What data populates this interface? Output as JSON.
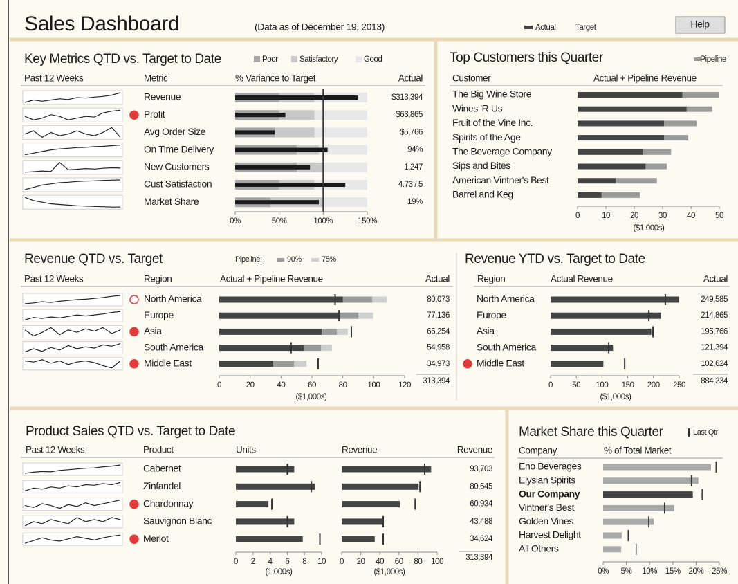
{
  "colors": {
    "title": "#b86e2e",
    "actual": "#444444",
    "key_actual": "#1a1a1a",
    "poor": "#a6a6a6",
    "satisfactory": "#c8c8c8",
    "good": "#e8e8e8",
    "pipeline_90": "#9a9a9a",
    "pipeline_75": "#cfcfcf",
    "pipeline": "#9a9a9a",
    "share": "#a9a9a9",
    "highlight": "#444444",
    "alert": "#e03a3a",
    "target": "#333333"
  },
  "header": {
    "title": "Sales Dashboard",
    "subtitle": "(Data as of December 19, 2013)",
    "legend": [
      "Actual",
      "Target"
    ],
    "help": "Help"
  },
  "key_metrics": {
    "title": "Key Metrics QTD vs. Target to Date",
    "legend": [
      "Poor",
      "Satisfactory",
      "Good"
    ],
    "columns": [
      "Past 12 Weeks",
      "Metric",
      "% Variance to Target",
      "Actual"
    ],
    "xlim": [
      0,
      150
    ],
    "xticks": [
      {
        "value": 0,
        "label": "0%"
      },
      {
        "value": 50,
        "label": "50%"
      },
      {
        "value": 100,
        "label": "100%"
      },
      {
        "value": 150,
        "label": "150%"
      }
    ],
    "target": 100,
    "rows": [
      {
        "metric": "Revenue",
        "alert": false,
        "spark": [
          3,
          4,
          3.5,
          4,
          4.5,
          4.2,
          5,
          4.8,
          5.2,
          5.5,
          6,
          7
        ],
        "poor": 50,
        "satisfactory": 90,
        "value": 139,
        "actual": "$313,394"
      },
      {
        "metric": "Profit",
        "alert": true,
        "spark": [
          5,
          4,
          4.5,
          5.5,
          5,
          4,
          4.5,
          5,
          4.8,
          6,
          6.5,
          6.8
        ],
        "poor": 50,
        "satisfactory": 90,
        "value": 57,
        "actual": "$63,865"
      },
      {
        "metric": "Avg Order Size",
        "alert": false,
        "spark": [
          5,
          6,
          4,
          5.5,
          4.5,
          5,
          6,
          5,
          4.5,
          5.5,
          7,
          4
        ],
        "poor": 45,
        "satisfactory": 90,
        "value": 45,
        "actual": "$5,766"
      },
      {
        "metric": "On Time Delivery",
        "alert": false,
        "spark": [
          3,
          3.5,
          4,
          4.5,
          4.8,
          5,
          5.2,
          5.3,
          5.5,
          5.6,
          5.8,
          6
        ],
        "poor": 70,
        "satisfactory": 95,
        "value": 105,
        "actual": "94%"
      },
      {
        "metric": "New Customers",
        "alert": false,
        "spark": [
          3,
          3.2,
          3.5,
          3.3,
          7,
          4,
          4.2,
          4.5,
          4.3,
          4.6,
          4.8,
          4.7
        ],
        "poor": 70,
        "satisfactory": 100,
        "value": 85,
        "actual": "1,247"
      },
      {
        "metric": "Cust Satisfaction",
        "alert": false,
        "spark": [
          2,
          3,
          4,
          4.5,
          5,
          5.2,
          5.5,
          5.7,
          5.8,
          6,
          6.1,
          6.2
        ],
        "poor": 50,
        "satisfactory": 90,
        "value": 125,
        "actual": "4.73 / 5"
      },
      {
        "metric": "Market Share",
        "alert": false,
        "spark": [
          7,
          6,
          5.5,
          5,
          4.8,
          4.6,
          4.4,
          4.3,
          4.2,
          4.1,
          4,
          4
        ],
        "poor": 40,
        "satisfactory": 100,
        "value": 95,
        "actual": "19%"
      }
    ]
  },
  "top_customers": {
    "title": "Top Customers this Quarter",
    "legend": [
      "Pipeline"
    ],
    "columns": [
      "Customer",
      "Actual + Pipeline Revenue"
    ],
    "xlim": [
      0,
      50
    ],
    "xticks": [
      0,
      10,
      20,
      30,
      40,
      50
    ],
    "xlabel": "($1,000s)",
    "rows": [
      {
        "name": "The Big Wine Store",
        "actual": 37,
        "pipeline": 13
      },
      {
        "name": "Wines 'R Us",
        "actual": 38.5,
        "pipeline": 9
      },
      {
        "name": "Fruit of the Vine Inc.",
        "actual": 30.5,
        "pipeline": 11.5
      },
      {
        "name": "Spirits of the Age",
        "actual": 30.5,
        "pipeline": 8.5
      },
      {
        "name": "The Beverage Company",
        "actual": 23,
        "pipeline": 10
      },
      {
        "name": "Sips and Bites",
        "actual": 24,
        "pipeline": 7.5
      },
      {
        "name": "American Vintner's Best",
        "actual": 13.5,
        "pipeline": 14.5
      },
      {
        "name": "Barrel and Keg",
        "actual": 8.5,
        "pipeline": 13.5
      }
    ]
  },
  "revenue_qtd": {
    "title": "Revenue QTD vs. Target",
    "legend_title": "Pipeline:",
    "legend": [
      "90%",
      "75%"
    ],
    "columns": [
      "Past 12 Weeks",
      "Region",
      "Actual + Pipeline Revenue",
      "Actual"
    ],
    "xlim": [
      0,
      120
    ],
    "xticks": [
      0,
      20,
      40,
      60,
      80,
      100,
      120
    ],
    "xlabel": "($1,000s)",
    "rows": [
      {
        "region": "North America",
        "alert": "outline",
        "spark": [
          4,
          4.2,
          4.5,
          4.3,
          4.6,
          4.8,
          5,
          5.1,
          5.3,
          5.5,
          5.8,
          6
        ],
        "actual": 80.073,
        "pipeline_90": 19,
        "pipeline_75": 9.5,
        "target": 75,
        "actual_label": "80,073"
      },
      {
        "region": "Europe",
        "alert": null,
        "spark": [
          4,
          4.5,
          4.3,
          4.6,
          4.4,
          4.7,
          5,
          4.8,
          5,
          5.2,
          5.5,
          5.7
        ],
        "actual": 77.136,
        "pipeline_90": 13,
        "pipeline_75": 9.5,
        "target": 77.5,
        "actual_label": "77,136"
      },
      {
        "region": "Asia",
        "alert": "filled",
        "spark": [
          5,
          4.5,
          4.8,
          5.2,
          4.6,
          5,
          4.8,
          5.1,
          4.9,
          5.2,
          4.7,
          5
        ],
        "actual": 66.254,
        "pipeline_90": 10,
        "pipeline_75": 7,
        "target": 85.5,
        "actual_label": "66,254"
      },
      {
        "region": "South America",
        "alert": null,
        "spark": [
          4.5,
          5,
          4.6,
          5.2,
          4.8,
          5.5,
          5,
          5.3,
          5.1,
          5.6,
          5.4,
          5.8
        ],
        "actual": 54.958,
        "pipeline_90": 11,
        "pipeline_75": 7,
        "target": 46.5,
        "actual_label": "54,958"
      },
      {
        "region": "Middle East",
        "alert": "filled",
        "spark": [
          5,
          4.8,
          5.2,
          4.6,
          5,
          4.4,
          4.8,
          5,
          4.7,
          4.2,
          3.8,
          5
        ],
        "actual": 34.973,
        "pipeline_90": 13.5,
        "pipeline_75": 8,
        "target": 64,
        "actual_label": "34,973"
      }
    ],
    "total": "313,394"
  },
  "revenue_ytd": {
    "title": "Revenue YTD vs. Target to Date",
    "columns": [
      "Region",
      "Actual Revenue",
      "Actual"
    ],
    "xlim": [
      0,
      250
    ],
    "xticks": [
      0,
      50,
      100,
      150,
      200,
      250
    ],
    "xlabel": "($1,000s)",
    "rows": [
      {
        "region": "North America",
        "alert": false,
        "actual": 249.585,
        "target": 223,
        "actual_label": "249,585"
      },
      {
        "region": "Europe",
        "alert": false,
        "actual": 214.865,
        "target": 191,
        "actual_label": "214,865"
      },
      {
        "region": "Asia",
        "alert": false,
        "actual": 195.766,
        "target": 199,
        "actual_label": "195,766"
      },
      {
        "region": "South America",
        "alert": false,
        "actual": 121.394,
        "target": 113,
        "actual_label": "121,394"
      },
      {
        "region": "Middle East",
        "alert": true,
        "actual": 102.624,
        "target": 144,
        "actual_label": "102,624"
      }
    ],
    "total": "884,234"
  },
  "product_sales": {
    "title": "Product Sales QTD vs. Target to Date",
    "columns": [
      "Past 12 Weeks",
      "Product",
      "Units",
      "Revenue",
      "Revenue"
    ],
    "units_axis": {
      "xlim": [
        0,
        10
      ],
      "xticks": [
        0,
        2,
        4,
        6,
        8,
        10
      ],
      "xlabel": "(1,000s)"
    },
    "revenue_axis": {
      "xlim": [
        0,
        100
      ],
      "xticks": [
        0,
        20,
        40,
        60,
        80,
        100
      ],
      "xlabel": "($1,000s)"
    },
    "rows": [
      {
        "product": "Cabernet",
        "alert": false,
        "spark": [
          4,
          4.3,
          4.5,
          4.4,
          4.8,
          5,
          5.2,
          5.4,
          5.5,
          5.8,
          6,
          6.3
        ],
        "units": 6.8,
        "units_target": 6,
        "revenue": 93.703,
        "revenue_target": 87,
        "revenue_label": "93,703"
      },
      {
        "product": "Zinfandel",
        "alert": false,
        "spark": [
          4.5,
          5,
          4.8,
          5.2,
          5,
          5.4,
          5.2,
          5.6,
          5.5,
          5.8,
          5.6,
          6
        ],
        "units": 9.2,
        "units_target": 8.8,
        "revenue": 80.645,
        "revenue_target": 82,
        "revenue_label": "80,645"
      },
      {
        "product": "Chardonnay",
        "alert": true,
        "spark": [
          5,
          4.8,
          5.2,
          5,
          4.7,
          5.1,
          4.9,
          5.3,
          5,
          5.2,
          5.4,
          5.6
        ],
        "units": 3.8,
        "units_target": 4.2,
        "revenue": 60.934,
        "revenue_target": 77,
        "revenue_label": "60,934"
      },
      {
        "product": "Sauvignon Blanc",
        "alert": false,
        "spark": [
          4.8,
          5,
          4.9,
          5.1,
          5,
          4.9,
          5.2,
          5,
          5.1,
          5,
          5.2,
          5.1
        ],
        "units": 6.8,
        "units_target": 6,
        "revenue": 43.488,
        "revenue_target": 43.5,
        "revenue_label": "43,488"
      },
      {
        "product": "Merlot",
        "alert": true,
        "spark": [
          4,
          4.5,
          5,
          4.6,
          4.4,
          4.8,
          5.2,
          4.9,
          4.6,
          5,
          5.3,
          5.5
        ],
        "units": 7.8,
        "units_target": 9.8,
        "revenue": 34.624,
        "revenue_target": 43.5,
        "revenue_label": "34,624"
      }
    ],
    "total": "313,394"
  },
  "market_share": {
    "title": "Market Share this Quarter",
    "legend": [
      "Last Qtr"
    ],
    "columns": [
      "Company",
      "% of Total Market"
    ],
    "xlim": [
      0,
      25
    ],
    "xticks": [
      {
        "value": 0,
        "label": "0%"
      },
      {
        "value": 5,
        "label": "5%"
      },
      {
        "value": 10,
        "label": "10%"
      },
      {
        "value": 15,
        "label": "15%"
      },
      {
        "value": 20,
        "label": "20%"
      },
      {
        "value": 25,
        "label": "25%"
      }
    ],
    "rows": [
      {
        "company": "Eno Beverages",
        "share": 23.2,
        "last_qtr": 24.3,
        "highlight": false
      },
      {
        "company": "Elysian Spirits",
        "share": 20.5,
        "last_qtr": 19,
        "highlight": false
      },
      {
        "company": "Our Company",
        "share": 19.3,
        "last_qtr": 21.3,
        "highlight": true
      },
      {
        "company": "Vintner's Best",
        "share": 15.3,
        "last_qtr": 13.2,
        "highlight": false
      },
      {
        "company": "Golden Vines",
        "share": 10.9,
        "last_qtr": 9.8,
        "highlight": false
      },
      {
        "company": "Harvest Delight",
        "share": 4,
        "last_qtr": 5.4,
        "highlight": false
      },
      {
        "company": "All Others",
        "share": 3.9,
        "last_qtr": 7.1,
        "highlight": false
      }
    ]
  }
}
